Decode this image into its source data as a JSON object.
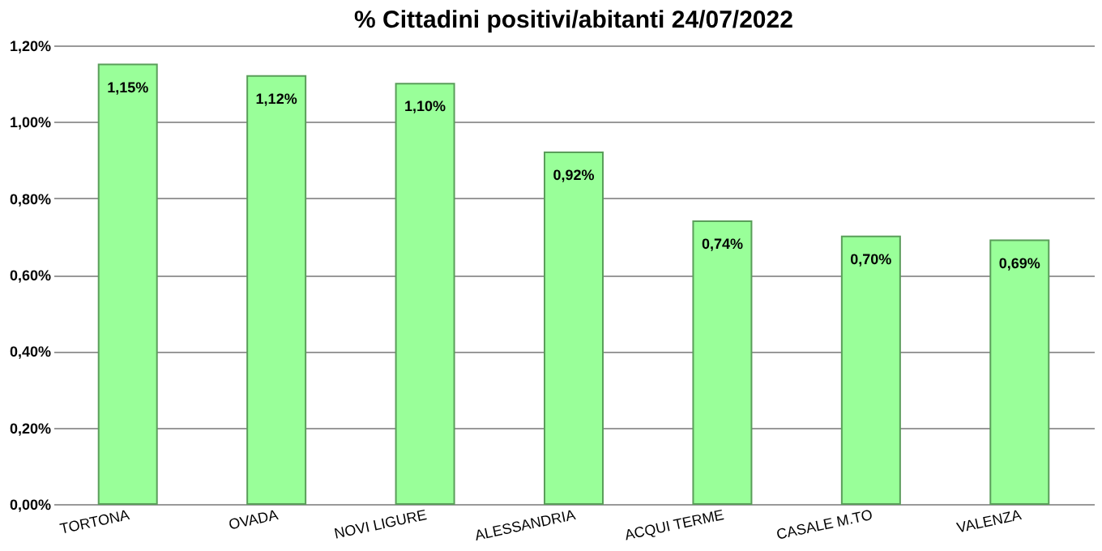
{
  "chart_data": {
    "type": "bar",
    "title": "% Cittadini positivi/abitanti 24/07/2022",
    "categories": [
      "TORTONA",
      "OVADA",
      "NOVI LIGURE",
      "ALESSANDRIA",
      "ACQUI TERME",
      "CASALE M.TO",
      "VALENZA"
    ],
    "values": [
      1.15,
      1.12,
      1.1,
      0.92,
      0.74,
      0.7,
      0.69
    ],
    "value_labels": [
      "1,15%",
      "1,12%",
      "1,10%",
      "0,92%",
      "0,74%",
      "0,70%",
      "0,69%"
    ],
    "color": "#99ff99",
    "ylim": [
      0,
      1.2
    ],
    "yticks": [
      {
        "value": 0,
        "label": "0,00%"
      },
      {
        "value": 0.2,
        "label": "0,20%"
      },
      {
        "value": 0.4,
        "label": "0,40%"
      },
      {
        "value": 0.6,
        "label": "0,60%"
      },
      {
        "value": 0.8,
        "label": "0,80%"
      },
      {
        "value": 1.0,
        "label": "1,00%"
      },
      {
        "value": 1.2,
        "label": "1,20%"
      }
    ],
    "grid": "y"
  }
}
